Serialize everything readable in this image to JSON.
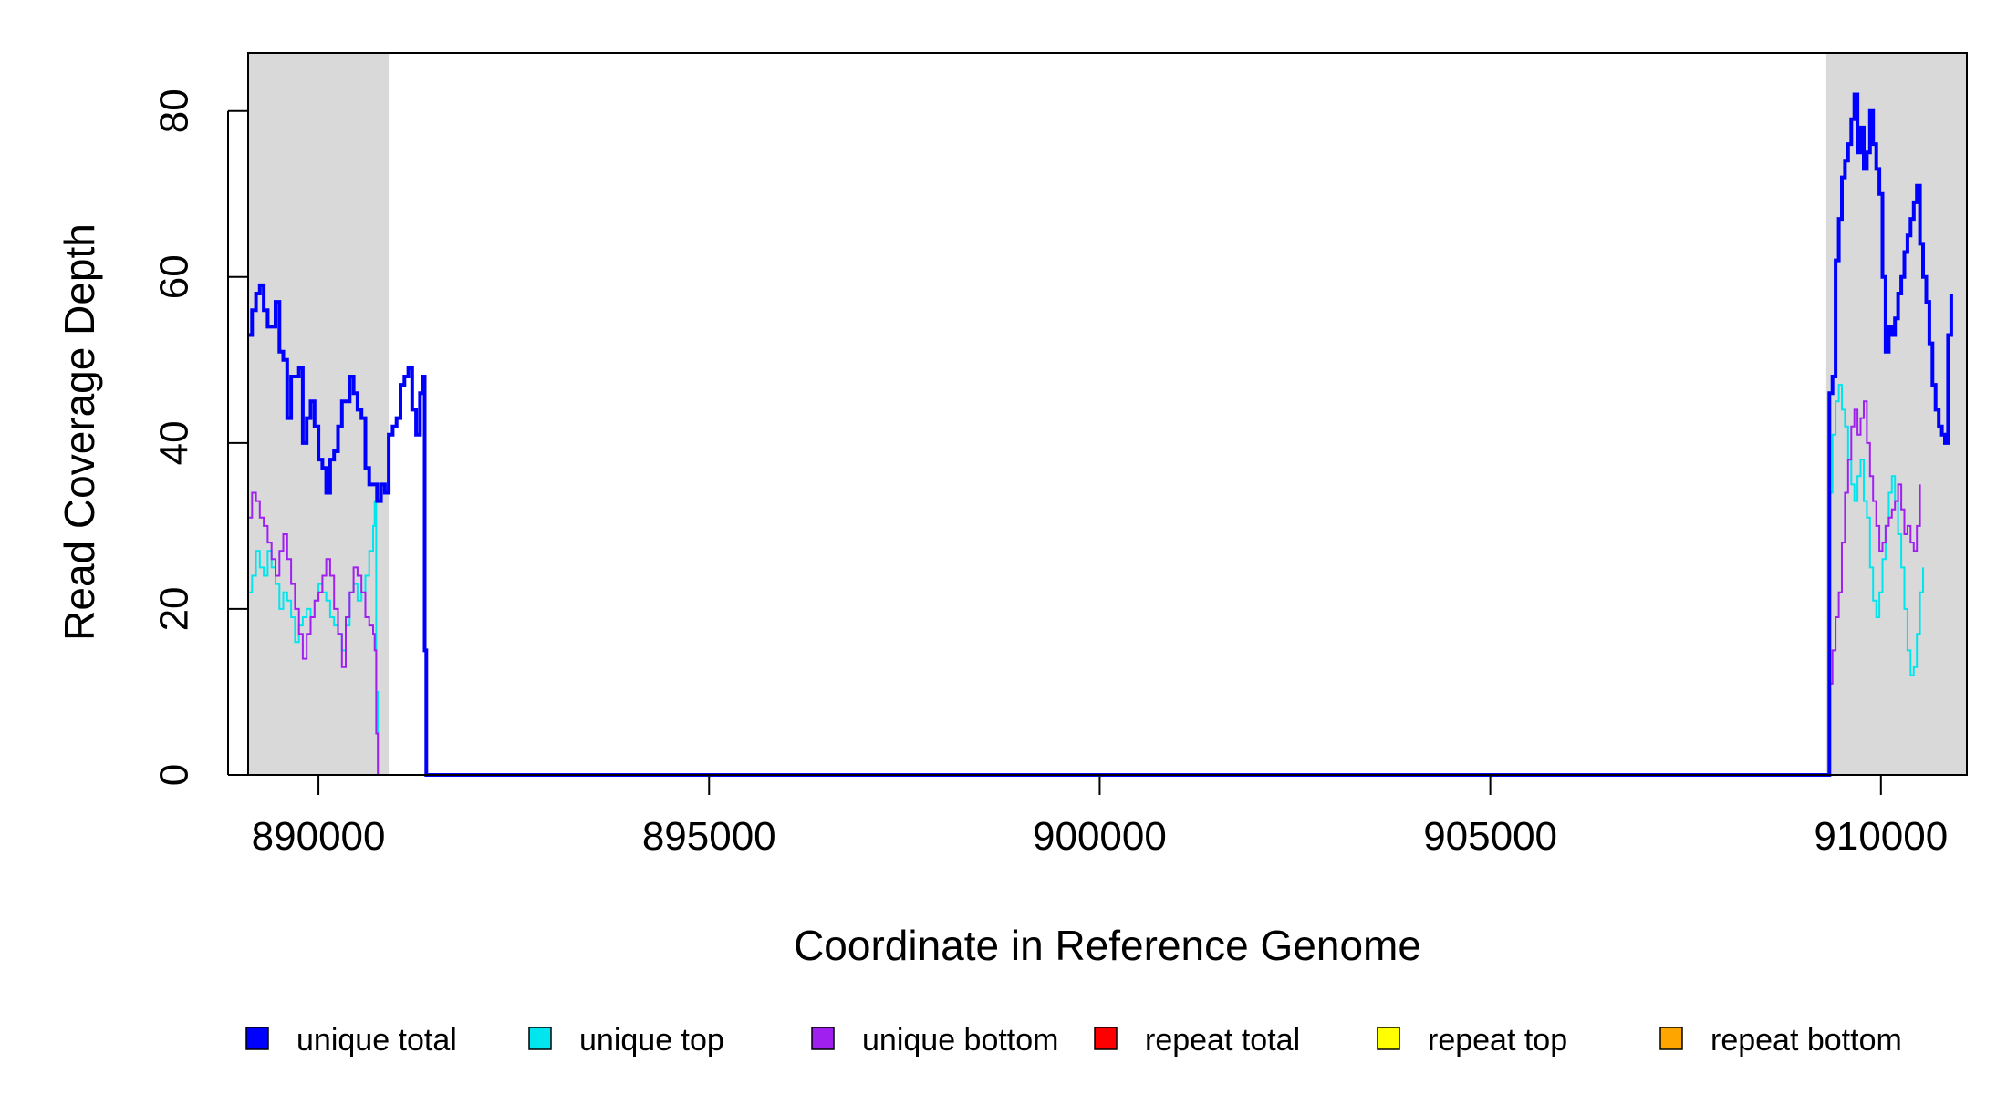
{
  "chart_data": {
    "type": "line",
    "title": "",
    "xlabel": "Coordinate in Reference Genome",
    "ylabel": "Read Coverage Depth",
    "xlim": [
      889100,
      911100
    ],
    "ylim": [
      0,
      87
    ],
    "x_ticks": [
      890000,
      895000,
      900000,
      905000,
      910000
    ],
    "y_ticks": [
      0,
      20,
      40,
      60,
      80
    ],
    "grid": false,
    "legend_position": "bottom",
    "shaded_regions": [
      {
        "x0": 889100,
        "x1": 890900,
        "color": "#d9d9d9"
      },
      {
        "x0": 909300,
        "x1": 911100,
        "color": "#d9d9d9"
      }
    ],
    "series": [
      {
        "name": "unique total",
        "color": "#0000ff",
        "thick": true,
        "points": [
          [
            889100,
            53
          ],
          [
            889150,
            56
          ],
          [
            889200,
            58
          ],
          [
            889250,
            59
          ],
          [
            889300,
            56
          ],
          [
            889350,
            54
          ],
          [
            889400,
            54
          ],
          [
            889450,
            57
          ],
          [
            889500,
            51
          ],
          [
            889550,
            50
          ],
          [
            889600,
            43
          ],
          [
            889650,
            48
          ],
          [
            889700,
            48
          ],
          [
            889750,
            49
          ],
          [
            889800,
            40
          ],
          [
            889850,
            43
          ],
          [
            889900,
            45
          ],
          [
            889950,
            42
          ],
          [
            890000,
            38
          ],
          [
            890050,
            37
          ],
          [
            890100,
            34
          ],
          [
            890150,
            38
          ],
          [
            890200,
            39
          ],
          [
            890250,
            42
          ],
          [
            890300,
            45
          ],
          [
            890350,
            45
          ],
          [
            890400,
            48
          ],
          [
            890450,
            46
          ],
          [
            890500,
            44
          ],
          [
            890550,
            43
          ],
          [
            890600,
            37
          ],
          [
            890650,
            35
          ],
          [
            890700,
            35
          ],
          [
            890750,
            33
          ],
          [
            890800,
            35
          ],
          [
            890850,
            34
          ],
          [
            890900,
            41
          ],
          [
            890950,
            42
          ],
          [
            891000,
            43
          ],
          [
            891050,
            47
          ],
          [
            891100,
            48
          ],
          [
            891150,
            49
          ],
          [
            891200,
            44
          ],
          [
            891250,
            41
          ],
          [
            891300,
            46
          ],
          [
            891330,
            48
          ],
          [
            891360,
            15
          ],
          [
            891380,
            0
          ],
          [
            909320,
            0
          ],
          [
            909340,
            46
          ],
          [
            909380,
            48
          ],
          [
            909420,
            62
          ],
          [
            909460,
            67
          ],
          [
            909500,
            72
          ],
          [
            909540,
            74
          ],
          [
            909580,
            76
          ],
          [
            909620,
            79
          ],
          [
            909660,
            82
          ],
          [
            909700,
            75
          ],
          [
            909740,
            78
          ],
          [
            909780,
            73
          ],
          [
            909820,
            75
          ],
          [
            909860,
            80
          ],
          [
            909900,
            76
          ],
          [
            909940,
            73
          ],
          [
            909980,
            70
          ],
          [
            910020,
            60
          ],
          [
            910060,
            51
          ],
          [
            910100,
            54
          ],
          [
            910140,
            53
          ],
          [
            910180,
            55
          ],
          [
            910220,
            58
          ],
          [
            910260,
            60
          ],
          [
            910300,
            63
          ],
          [
            910340,
            65
          ],
          [
            910380,
            67
          ],
          [
            910420,
            69
          ],
          [
            910460,
            71
          ],
          [
            910500,
            64
          ],
          [
            910540,
            60
          ],
          [
            910580,
            57
          ],
          [
            910620,
            52
          ],
          [
            910660,
            47
          ],
          [
            910700,
            44
          ],
          [
            910740,
            42
          ],
          [
            910780,
            41
          ],
          [
            910820,
            40
          ],
          [
            910860,
            53
          ],
          [
            910900,
            58
          ]
        ]
      },
      {
        "name": "unique top",
        "color": "#00e5ee",
        "thick": false,
        "points": [
          [
            889100,
            22
          ],
          [
            889150,
            24
          ],
          [
            889200,
            27
          ],
          [
            889250,
            25
          ],
          [
            889300,
            24
          ],
          [
            889350,
            27
          ],
          [
            889400,
            25
          ],
          [
            889450,
            23
          ],
          [
            889500,
            20
          ],
          [
            889550,
            22
          ],
          [
            889600,
            21
          ],
          [
            889650,
            19
          ],
          [
            889700,
            16
          ],
          [
            889750,
            18
          ],
          [
            889800,
            19
          ],
          [
            889850,
            20
          ],
          [
            889900,
            19
          ],
          [
            889950,
            21
          ],
          [
            890000,
            23
          ],
          [
            890050,
            22
          ],
          [
            890100,
            21
          ],
          [
            890150,
            19
          ],
          [
            890200,
            18
          ],
          [
            890250,
            17
          ],
          [
            890300,
            15
          ],
          [
            890350,
            18
          ],
          [
            890400,
            22
          ],
          [
            890450,
            23
          ],
          [
            890500,
            21
          ],
          [
            890550,
            22
          ],
          [
            890600,
            24
          ],
          [
            890650,
            27
          ],
          [
            890700,
            30
          ],
          [
            890720,
            33
          ],
          [
            890740,
            10
          ],
          [
            890760,
            0
          ],
          [
            909320,
            0
          ],
          [
            909340,
            34
          ],
          [
            909380,
            41
          ],
          [
            909420,
            45
          ],
          [
            909460,
            47
          ],
          [
            909500,
            44
          ],
          [
            909540,
            42
          ],
          [
            909580,
            38
          ],
          [
            909620,
            35
          ],
          [
            909660,
            33
          ],
          [
            909700,
            36
          ],
          [
            909740,
            38
          ],
          [
            909780,
            33
          ],
          [
            909820,
            31
          ],
          [
            909860,
            25
          ],
          [
            909900,
            21
          ],
          [
            909940,
            19
          ],
          [
            909980,
            22
          ],
          [
            910020,
            26
          ],
          [
            910060,
            30
          ],
          [
            910100,
            34
          ],
          [
            910140,
            36
          ],
          [
            910180,
            33
          ],
          [
            910220,
            29
          ],
          [
            910260,
            25
          ],
          [
            910300,
            20
          ],
          [
            910340,
            15
          ],
          [
            910380,
            12
          ],
          [
            910420,
            13
          ],
          [
            910460,
            17
          ],
          [
            910500,
            22
          ],
          [
            910540,
            25
          ]
        ]
      },
      {
        "name": "unique bottom",
        "color": "#a020f0",
        "thick": false,
        "points": [
          [
            889100,
            31
          ],
          [
            889150,
            34
          ],
          [
            889200,
            33
          ],
          [
            889250,
            31
          ],
          [
            889300,
            30
          ],
          [
            889350,
            28
          ],
          [
            889400,
            26
          ],
          [
            889450,
            24
          ],
          [
            889500,
            27
          ],
          [
            889550,
            29
          ],
          [
            889600,
            26
          ],
          [
            889650,
            23
          ],
          [
            889700,
            20
          ],
          [
            889750,
            17
          ],
          [
            889800,
            14
          ],
          [
            889850,
            17
          ],
          [
            889900,
            19
          ],
          [
            889950,
            21
          ],
          [
            890000,
            22
          ],
          [
            890050,
            24
          ],
          [
            890100,
            26
          ],
          [
            890150,
            24
          ],
          [
            890200,
            20
          ],
          [
            890250,
            17
          ],
          [
            890300,
            13
          ],
          [
            890350,
            19
          ],
          [
            890400,
            22
          ],
          [
            890450,
            25
          ],
          [
            890500,
            24
          ],
          [
            890550,
            22
          ],
          [
            890600,
            19
          ],
          [
            890650,
            18
          ],
          [
            890700,
            17
          ],
          [
            890720,
            15
          ],
          [
            890740,
            5
          ],
          [
            890760,
            0
          ],
          [
            909320,
            0
          ],
          [
            909340,
            11
          ],
          [
            909380,
            15
          ],
          [
            909420,
            19
          ],
          [
            909460,
            22
          ],
          [
            909500,
            28
          ],
          [
            909540,
            34
          ],
          [
            909580,
            38
          ],
          [
            909620,
            42
          ],
          [
            909660,
            44
          ],
          [
            909700,
            41
          ],
          [
            909740,
            43
          ],
          [
            909780,
            45
          ],
          [
            909820,
            40
          ],
          [
            909860,
            36
          ],
          [
            909900,
            33
          ],
          [
            909940,
            30
          ],
          [
            909980,
            27
          ],
          [
            910020,
            28
          ],
          [
            910060,
            30
          ],
          [
            910100,
            31
          ],
          [
            910140,
            32
          ],
          [
            910180,
            33
          ],
          [
            910220,
            35
          ],
          [
            910260,
            32
          ],
          [
            910300,
            29
          ],
          [
            910340,
            30
          ],
          [
            910380,
            28
          ],
          [
            910420,
            27
          ],
          [
            910460,
            30
          ],
          [
            910500,
            35
          ]
        ]
      },
      {
        "name": "repeat total",
        "color": "#ff0000",
        "thick": false,
        "points": [
          [
            889100,
            0
          ],
          [
            911100,
            0
          ]
        ]
      },
      {
        "name": "repeat top",
        "color": "#ffff00",
        "thick": false,
        "points": [
          [
            889100,
            0
          ],
          [
            911100,
            0
          ]
        ]
      },
      {
        "name": "repeat bottom",
        "color": "#ffa500",
        "thick": false,
        "points": [
          [
            889100,
            0
          ],
          [
            911100,
            0
          ]
        ]
      }
    ]
  }
}
